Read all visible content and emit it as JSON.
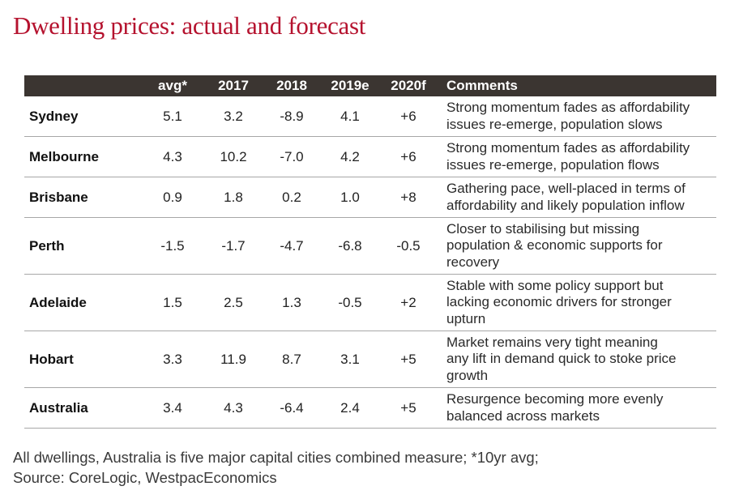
{
  "title": "Dwelling prices: actual and forecast",
  "footnote": {
    "line1": "All dwellings, Australia is five major capital cities combined measure; *10yr avg;",
    "line2": "Source: CoreLogic, WestpacEconomics"
  },
  "colors": {
    "title": "#b5122e",
    "header_bg": "#3b3531",
    "header_text": "#ffffff",
    "row_rule": "#a7a7a7"
  },
  "chart_data": {
    "type": "table",
    "columns": [
      "",
      "avg*",
      "2017",
      "2018",
      "2019e",
      "2020f",
      "Comments"
    ],
    "rows": [
      {
        "city": "Sydney",
        "avg": "5.1",
        "y2017": "3.2",
        "y2018": "-8.9",
        "y2019e": "4.1",
        "y2020f": "+6",
        "comments": [
          "Strong momentum fades as affordability",
          "issues re-emerge, population slows"
        ]
      },
      {
        "city": "Melbourne",
        "avg": "4.3",
        "y2017": "10.2",
        "y2018": "-7.0",
        "y2019e": "4.2",
        "y2020f": "+6",
        "comments": [
          "Strong momentum fades as affordability",
          "issues re-emerge, population flows"
        ]
      },
      {
        "city": "Brisbane",
        "avg": "0.9",
        "y2017": "1.8",
        "y2018": "0.2",
        "y2019e": "1.0",
        "y2020f": "+8",
        "comments": [
          "Gathering pace, well-placed in terms of",
          "affordability and likely population inflow"
        ]
      },
      {
        "city": "Perth",
        "avg": "-1.5",
        "y2017": "-1.7",
        "y2018": "-4.7",
        "y2019e": "-6.8",
        "y2020f": "-0.5",
        "comments": [
          "Closer to stabilising but missing",
          "population & economic supports for",
          "recovery"
        ]
      },
      {
        "city": "Adelaide",
        "avg": "1.5",
        "y2017": "2.5",
        "y2018": "1.3",
        "y2019e": "-0.5",
        "y2020f": "+2",
        "comments": [
          "Stable with some policy support but",
          "lacking economic drivers for stronger",
          "upturn"
        ]
      },
      {
        "city": "Hobart",
        "avg": "3.3",
        "y2017": "11.9",
        "y2018": "8.7",
        "y2019e": "3.1",
        "y2020f": "+5",
        "comments": [
          "Market remains very tight meaning",
          "any lift in demand quick to stoke price",
          "growth"
        ]
      },
      {
        "city": "Australia",
        "avg": "3.4",
        "y2017": "4.3",
        "y2018": "-6.4",
        "y2019e": "2.4",
        "y2020f": "+5",
        "comments": [
          "Resurgence becoming more evenly",
          "balanced across markets"
        ]
      }
    ]
  }
}
